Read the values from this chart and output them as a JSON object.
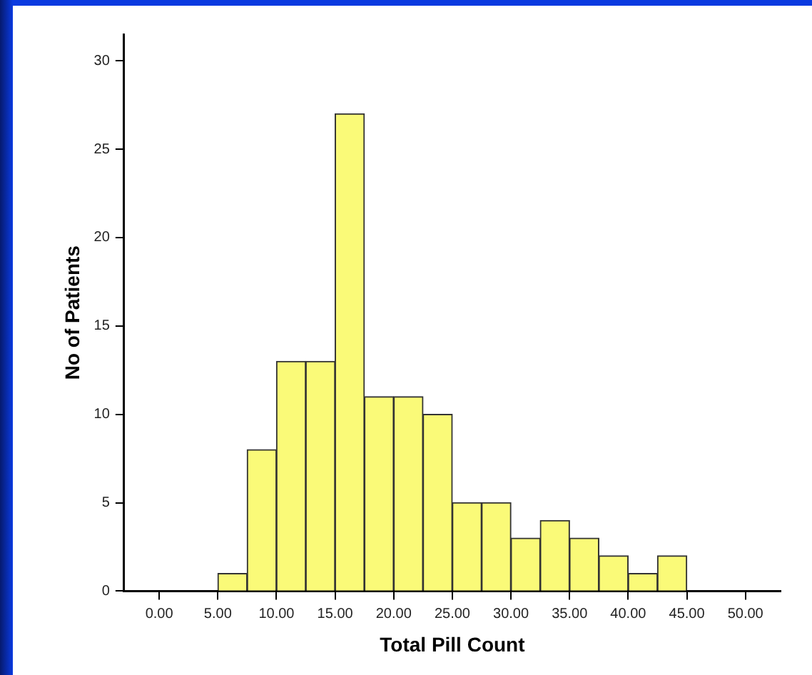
{
  "chart_data": {
    "type": "histogram",
    "xlabel": "Total Pill Count",
    "ylabel": "No of Patients",
    "bins": [
      5,
      7.5,
      10,
      12.5,
      15,
      17.5,
      20,
      22.5,
      25,
      27.5,
      30,
      32.5,
      35,
      37.5,
      40,
      42.5,
      45
    ],
    "values": [
      1,
      8,
      13,
      13,
      27,
      11,
      11,
      10,
      5,
      5,
      3,
      4,
      3,
      2,
      1,
      2
    ],
    "color": "#fafa78",
    "xlim": [
      -3,
      53
    ],
    "xticks": [
      {
        "value": 0,
        "label": "0.00"
      },
      {
        "value": 5,
        "label": "5.00"
      },
      {
        "value": 10,
        "label": "10.00"
      },
      {
        "value": 15,
        "label": "15.00"
      },
      {
        "value": 20,
        "label": "20.00"
      },
      {
        "value": 25,
        "label": "25.00"
      },
      {
        "value": 30,
        "label": "30.00"
      },
      {
        "value": 35,
        "label": "35.00"
      },
      {
        "value": 40,
        "label": "40.00"
      },
      {
        "value": 45,
        "label": "45.00"
      },
      {
        "value": 50,
        "label": "50.00"
      }
    ],
    "ylim": [
      0,
      31.5
    ],
    "yticks": [
      0,
      5,
      10,
      15,
      20,
      25,
      30
    ],
    "grid": false
  }
}
